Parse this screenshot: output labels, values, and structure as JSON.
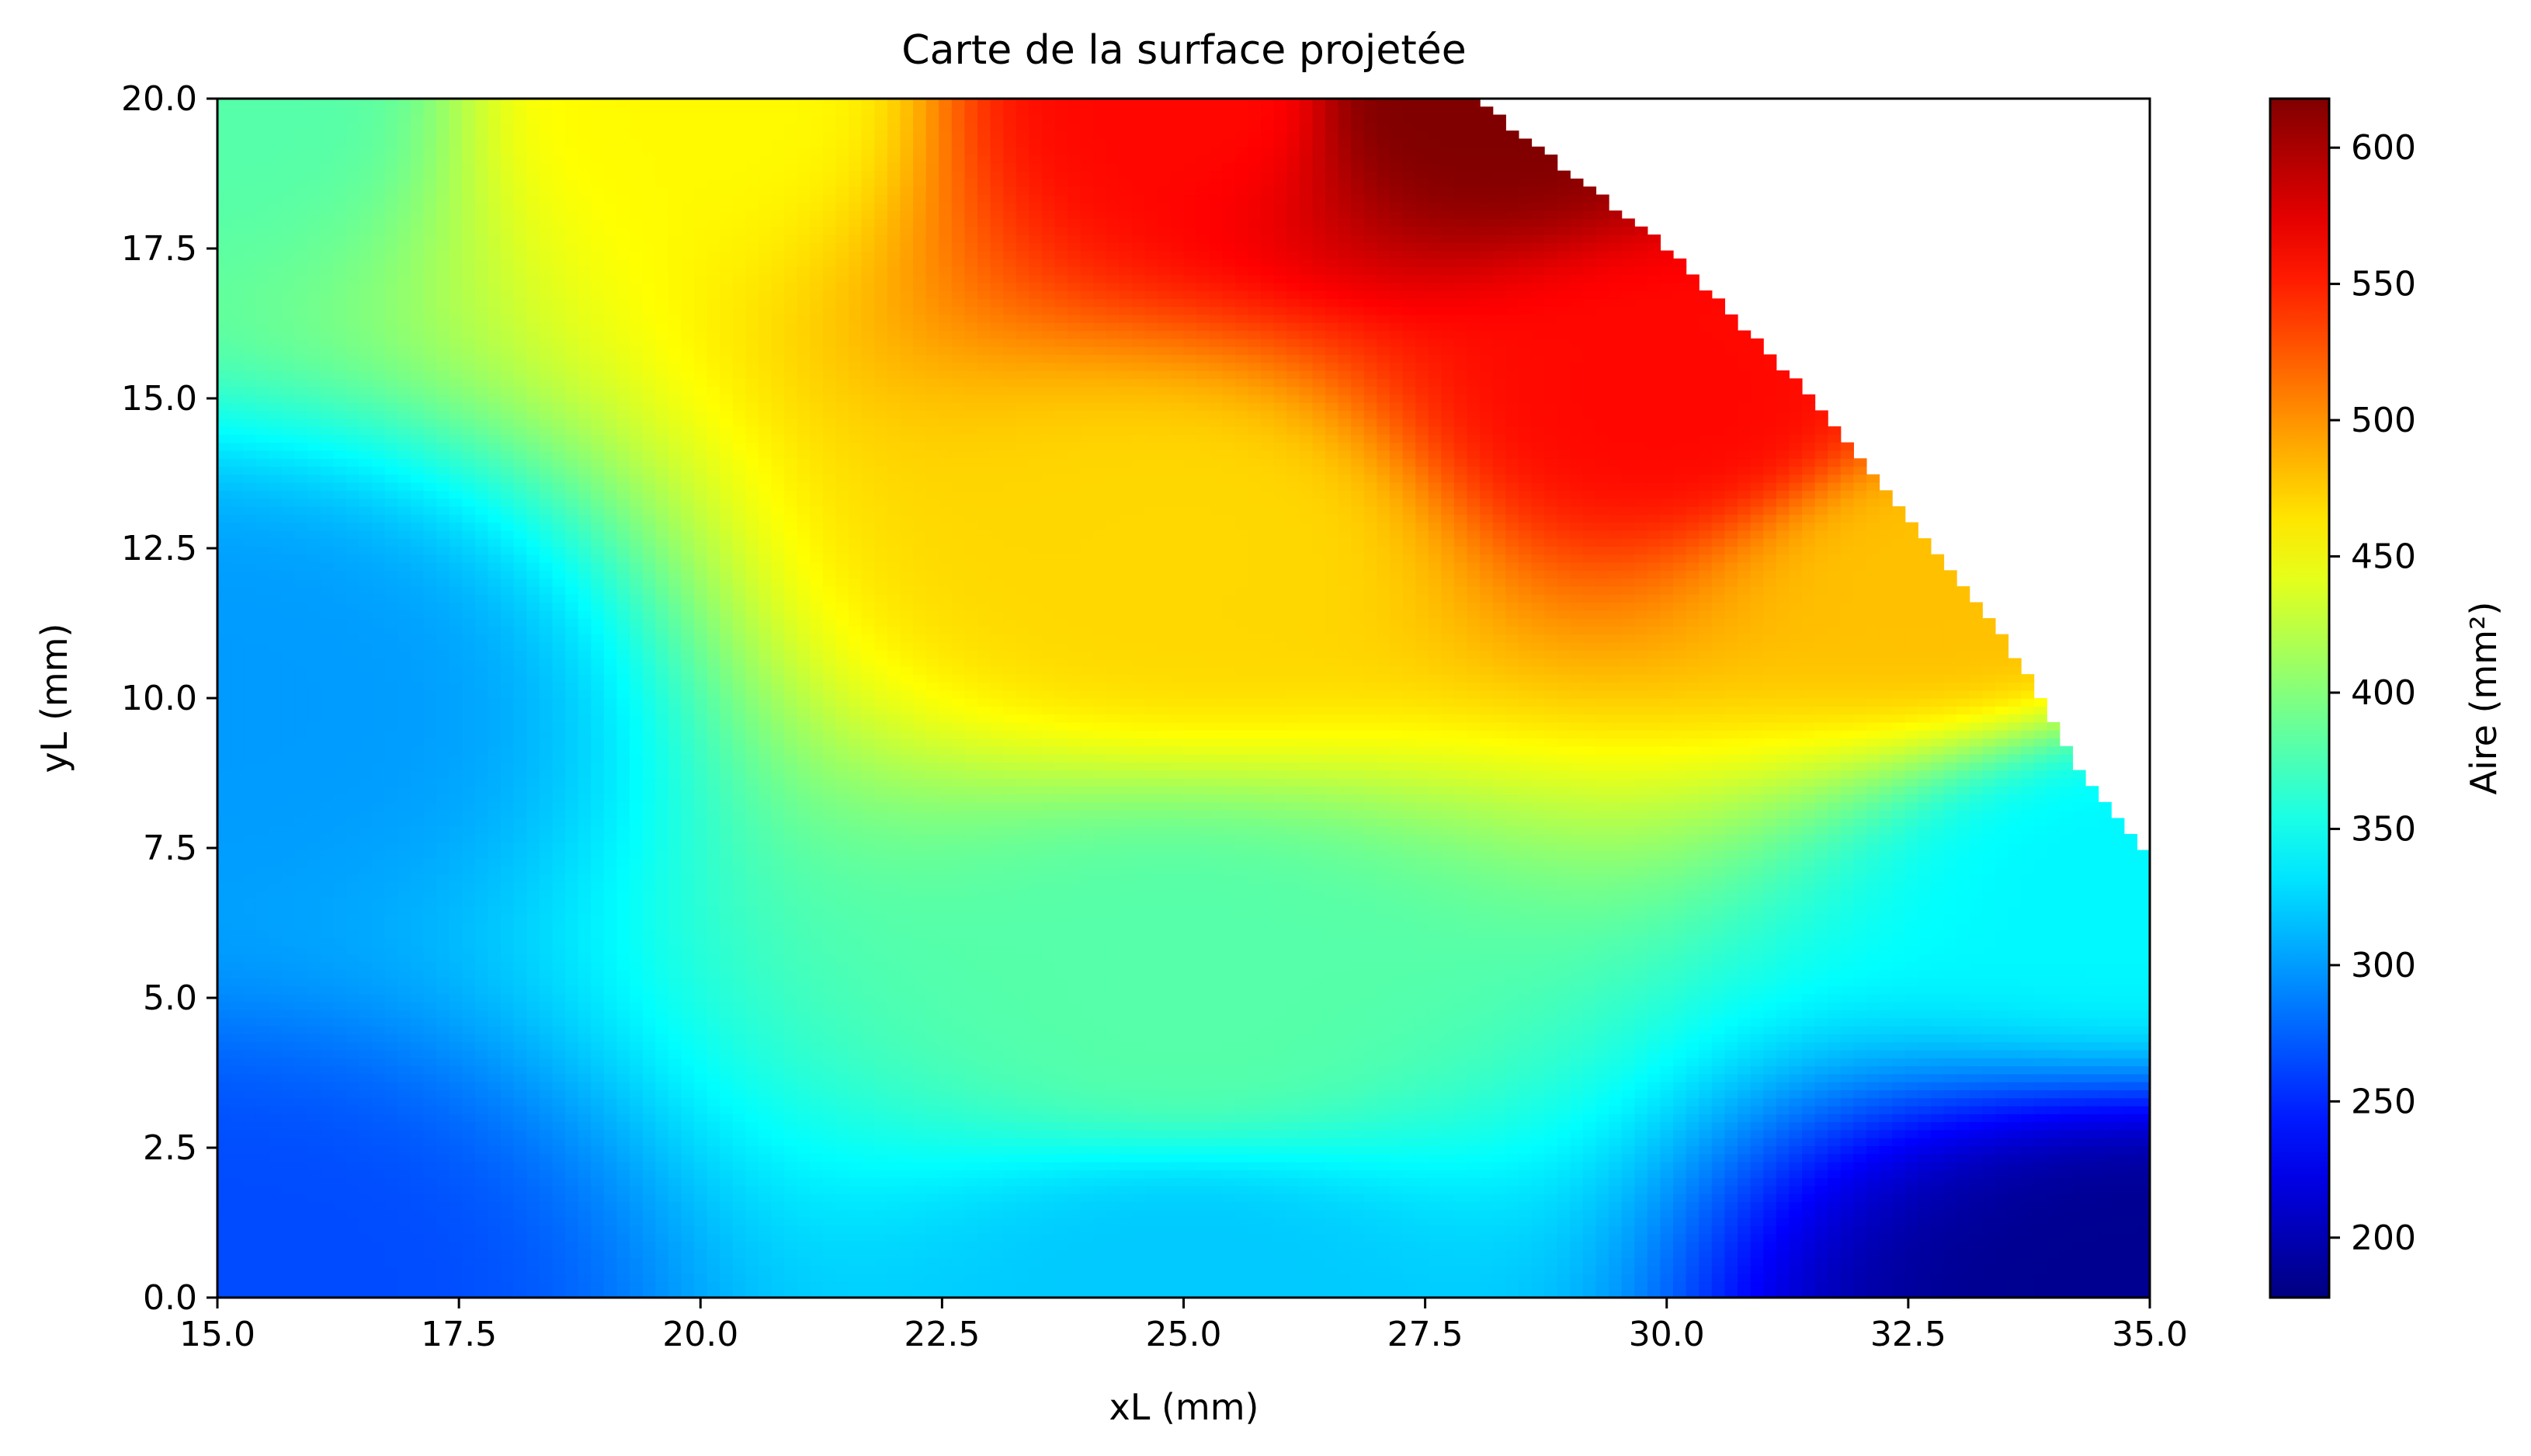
{
  "chart_data": {
    "type": "heatmap",
    "title": "Carte de la surface projetée",
    "xlabel": "xL (mm)",
    "ylabel": "yL (mm)",
    "colorbar_label": "Aire (mm²)",
    "colormap": "jet",
    "xlim": [
      15.0,
      35.0
    ],
    "ylim": [
      0.0,
      20.0
    ],
    "clim": [
      178,
      618
    ],
    "x_ticks": [
      "15.0",
      "17.5",
      "20.0",
      "22.5",
      "25.0",
      "27.5",
      "30.0",
      "32.5",
      "35.0"
    ],
    "y_ticks": [
      "0.0",
      "2.5",
      "5.0",
      "7.5",
      "10.0",
      "12.5",
      "15.0",
      "17.5",
      "20.0"
    ],
    "colorbar_ticks": [
      "200",
      "250",
      "300",
      "350",
      "400",
      "450",
      "500",
      "550",
      "600"
    ],
    "grid": false,
    "grid_resolution": {
      "nx": 150,
      "ny": 150
    },
    "field_samples": [
      {
        "x": 15.0,
        "y": 0.0,
        "value": 265
      },
      {
        "x": 15.0,
        "y": 10.0,
        "value": 300
      },
      {
        "x": 15.0,
        "y": 20.0,
        "value": 380
      },
      {
        "x": 20.0,
        "y": 20.0,
        "value": 455
      },
      {
        "x": 25.0,
        "y": 20.0,
        "value": 560
      },
      {
        "x": 27.9,
        "y": 20.0,
        "value": 618
      },
      {
        "x": 25.0,
        "y": 12.5,
        "value": 470
      },
      {
        "x": 25.0,
        "y": 5.0,
        "value": 380
      },
      {
        "x": 25.0,
        "y": 0.0,
        "value": 320
      },
      {
        "x": 30.0,
        "y": 15.0,
        "value": 560
      },
      {
        "x": 33.0,
        "y": 12.0,
        "value": 480
      },
      {
        "x": 35.0,
        "y": 7.0,
        "value": 340
      },
      {
        "x": 35.0,
        "y": 0.0,
        "value": 185
      }
    ],
    "valid_region_boundary": [
      {
        "x": 28.0,
        "y": 20.0
      },
      {
        "x": 30.0,
        "y": 17.5
      },
      {
        "x": 31.5,
        "y": 15.0
      },
      {
        "x": 32.5,
        "y": 13.0
      },
      {
        "x": 33.5,
        "y": 11.0
      },
      {
        "x": 34.2,
        "y": 9.0
      },
      {
        "x": 34.7,
        "y": 7.3
      },
      {
        "x": 35.0,
        "y": 7.3
      }
    ]
  }
}
